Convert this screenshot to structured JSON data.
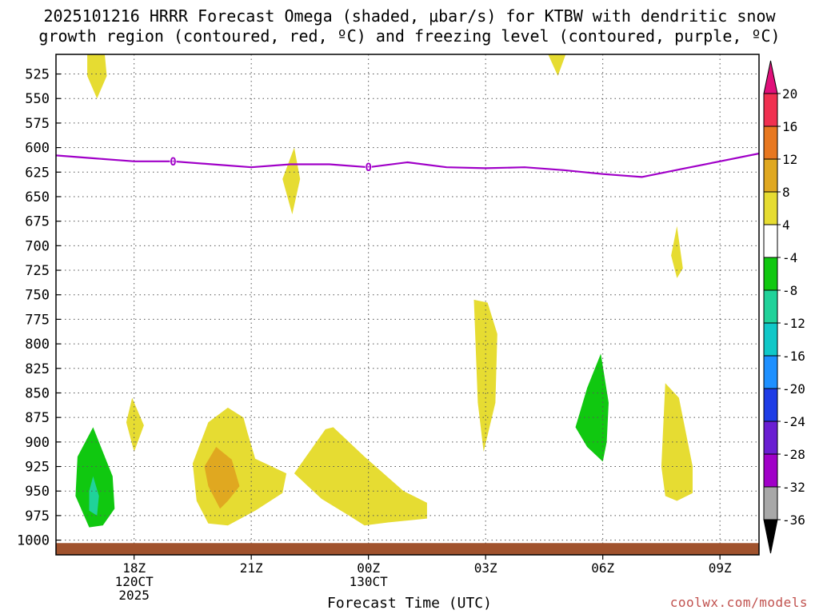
{
  "title": {
    "line1": "2025101216 HRRR Forecast Omega (shaded, μbar/s) for KTBW with dendritic snow",
    "line2": "growth region (contoured, red, ºC) and freezing level (contoured, purple, ºC)"
  },
  "credit": "coolwx.com/models",
  "chart_data": {
    "type": "contour",
    "xlabel": "Forecast Time (UTC)",
    "xlim": [
      16,
      34
    ],
    "ylim": [
      1015,
      505
    ],
    "y_ticks": [
      525,
      550,
      575,
      600,
      625,
      650,
      675,
      700,
      725,
      750,
      775,
      800,
      825,
      850,
      875,
      900,
      925,
      950,
      975,
      1000
    ],
    "x_ticks": [
      {
        "x": 18,
        "lines": [
          "18Z",
          "120CT",
          "2025"
        ]
      },
      {
        "x": 21,
        "lines": [
          "21Z"
        ]
      },
      {
        "x": 24,
        "lines": [
          "00Z",
          "130CT"
        ]
      },
      {
        "x": 27,
        "lines": [
          "03Z"
        ]
      },
      {
        "x": 30,
        "lines": [
          "06Z"
        ]
      },
      {
        "x": 33,
        "lines": [
          "09Z"
        ]
      }
    ],
    "grid": true,
    "freezing_level": {
      "label": "0",
      "color": "#a000c8",
      "points": [
        [
          16,
          608
        ],
        [
          17,
          611
        ],
        [
          18,
          614
        ],
        [
          19,
          614
        ],
        [
          20,
          617
        ],
        [
          21,
          620
        ],
        [
          22,
          617
        ],
        [
          23,
          617
        ],
        [
          24,
          620
        ],
        [
          25,
          615
        ],
        [
          26,
          620
        ],
        [
          27,
          621
        ],
        [
          28,
          620
        ],
        [
          29,
          623
        ],
        [
          30,
          627
        ],
        [
          31,
          630
        ],
        [
          32,
          622
        ],
        [
          33,
          614
        ],
        [
          34,
          606
        ]
      ],
      "label_x": [
        19,
        24
      ]
    },
    "shaded_regions": [
      {
        "level": 4,
        "color": "#e6dc32",
        "points": [
          [
            17.0,
            505
          ],
          [
            17.25,
            505
          ],
          [
            17.3,
            527
          ],
          [
            17.05,
            550
          ],
          [
            16.8,
            527
          ],
          [
            16.8,
            505
          ]
        ]
      },
      {
        "level": 4,
        "color": "#e6dc32",
        "points": [
          [
            28.6,
            505
          ],
          [
            29.05,
            505
          ],
          [
            28.85,
            527
          ]
        ]
      },
      {
        "level": 4,
        "color": "#e6dc32",
        "points": [
          [
            22.1,
            600
          ],
          [
            22.25,
            632
          ],
          [
            22.05,
            668
          ],
          [
            21.8,
            632
          ]
        ]
      },
      {
        "level": 4,
        "color": "#e6dc32",
        "points": [
          [
            31.9,
            680
          ],
          [
            32.05,
            723
          ],
          [
            31.9,
            733
          ],
          [
            31.75,
            710
          ]
        ]
      },
      {
        "level": 4,
        "color": "#e6dc32",
        "points": [
          [
            26.7,
            755
          ],
          [
            27.05,
            758
          ],
          [
            27.3,
            790
          ],
          [
            27.25,
            860
          ],
          [
            26.95,
            910
          ],
          [
            26.8,
            860
          ]
        ]
      },
      {
        "level": 4,
        "color": "#e6dc32",
        "points": [
          [
            17.95,
            855
          ],
          [
            18.25,
            883
          ],
          [
            18.0,
            910
          ],
          [
            17.8,
            880
          ]
        ]
      },
      {
        "level": 4,
        "color": "#e6dc32",
        "points": [
          [
            19.5,
            922
          ],
          [
            19.9,
            880
          ],
          [
            20.4,
            865
          ],
          [
            20.8,
            875
          ],
          [
            20.9,
            890
          ],
          [
            21.1,
            917
          ],
          [
            21.9,
            932
          ],
          [
            21.8,
            952
          ],
          [
            21.1,
            970
          ],
          [
            20.4,
            985
          ],
          [
            19.9,
            983
          ],
          [
            19.6,
            960
          ]
        ]
      },
      {
        "level": 4,
        "color": "#e6dc32",
        "points": [
          [
            22.1,
            932
          ],
          [
            22.9,
            887
          ],
          [
            23.1,
            885
          ],
          [
            23.9,
            915
          ],
          [
            24.9,
            950
          ],
          [
            25.5,
            962
          ],
          [
            25.5,
            978
          ],
          [
            24.5,
            982
          ],
          [
            23.9,
            985
          ],
          [
            23.5,
            975
          ],
          [
            22.8,
            958
          ]
        ]
      },
      {
        "level": 4,
        "color": "#e6dc32",
        "points": [
          [
            31.6,
            840
          ],
          [
            31.95,
            855
          ],
          [
            32.3,
            925
          ],
          [
            32.3,
            952
          ],
          [
            31.9,
            960
          ],
          [
            31.6,
            955
          ],
          [
            31.5,
            925
          ]
        ]
      },
      {
        "level": 8,
        "color": "#e0a820",
        "points": [
          [
            20.1,
            905
          ],
          [
            20.5,
            918
          ],
          [
            20.7,
            945
          ],
          [
            20.4,
            960
          ],
          [
            20.2,
            968
          ],
          [
            19.9,
            945
          ],
          [
            19.8,
            925
          ]
        ]
      },
      {
        "level": -4,
        "color": "#10c810",
        "points": [
          [
            16.5,
            955
          ],
          [
            16.55,
            915
          ],
          [
            16.95,
            885
          ],
          [
            17.45,
            935
          ],
          [
            17.5,
            968
          ],
          [
            17.2,
            985
          ],
          [
            16.85,
            987
          ]
        ]
      },
      {
        "level": -8,
        "color": "#20d29a",
        "points": [
          [
            16.95,
            935
          ],
          [
            17.1,
            955
          ],
          [
            17.05,
            975
          ],
          [
            16.85,
            970
          ],
          [
            16.85,
            950
          ]
        ]
      },
      {
        "level": -4,
        "color": "#10c810",
        "points": [
          [
            29.3,
            885
          ],
          [
            29.6,
            845
          ],
          [
            29.95,
            810
          ],
          [
            30.15,
            860
          ],
          [
            30.1,
            900
          ],
          [
            30.0,
            920
          ],
          [
            29.6,
            905
          ]
        ]
      }
    ],
    "ground": {
      "color": "#a0522d"
    },
    "colorbar": {
      "labels": [
        "20",
        "16",
        "12",
        "8",
        "4",
        "-4",
        "-8",
        "-12",
        "-16",
        "-20",
        "-24",
        "-28",
        "-32",
        "-36"
      ],
      "colors": [
        "#f03050",
        "#e87820",
        "#e0a820",
        "#e6dc32",
        "#ffffff",
        "#10c810",
        "#20d29a",
        "#10c8c8",
        "#1e90ff",
        "#1e3ce6",
        "#6a1ed2",
        "#a000c8",
        "#a8a8a8"
      ],
      "top_arrow": "#e0107a",
      "bottom_arrow": "#000000"
    }
  }
}
